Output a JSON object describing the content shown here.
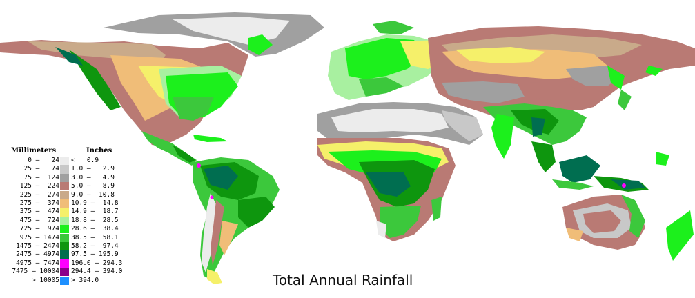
{
  "title": "Total Annual Rainfall",
  "legend": {
    "mm_header": "Millimeters",
    "in_header": "Inches",
    "rows": [
      {
        "mm": "0 –   24",
        "in": "<   0.9",
        "color": "#ececec"
      },
      {
        "mm": "25 –   74",
        "in": "1.0 –   2.9",
        "color": "#c8c8c8"
      },
      {
        "mm": "75 –  124",
        "in": "3.0 –   4.9",
        "color": "#a0a0a0"
      },
      {
        "mm": "125 –  224",
        "in": "5.0 –   8.9",
        "color": "#b97a74"
      },
      {
        "mm": "225 –  274",
        "in": "9.0 –  10.8",
        "color": "#c9aa8a"
      },
      {
        "mm": "275 –  374",
        "in": "10.9 –  14.8",
        "color": "#f0bd78"
      },
      {
        "mm": "375 –  474",
        "in": "14.9 –  18.7",
        "color": "#f5f06a"
      },
      {
        "mm": "475 –  724",
        "in": "18.8 –  28.5",
        "color": "#a8f0a0"
      },
      {
        "mm": "725 –  974",
        "in": "28.6 –  38.4",
        "color": "#1cf01c"
      },
      {
        "mm": "975 – 1474",
        "in": "38.5 –  58.1",
        "color": "#3cc83c"
      },
      {
        "mm": "1475 – 2474",
        "in": "58.2 –  97.4",
        "color": "#0e960e"
      },
      {
        "mm": "2475 – 4974",
        "in": "97.5 – 195.9",
        "color": "#006e50"
      },
      {
        "mm": "4975 – 7474",
        "in": "196.0 – 294.3",
        "color": "#ff00ff"
      },
      {
        "mm": "7475 – 10004",
        "in": "294.4 – 394.0",
        "color": "#8b008b"
      },
      {
        "mm": "> 10005",
        "in": "> 394.0",
        "color": "#1e90ff"
      }
    ]
  },
  "colors": {
    "background": "#ffffff",
    "desert_white": "#ececec",
    "desert_grey": "#c8c8c8",
    "arid_grey": "#a0a0a0",
    "semi_arid_brown": "#b97a74",
    "steppe_tan": "#c9aa8a",
    "orange": "#f0bd78",
    "yellow": "#f5f06a",
    "light_green": "#a8f0a0",
    "green": "#1cf01c",
    "mid_green": "#3cc83c",
    "dark_green": "#0e960e",
    "teal": "#006e50",
    "magenta": "#ff00ff"
  }
}
